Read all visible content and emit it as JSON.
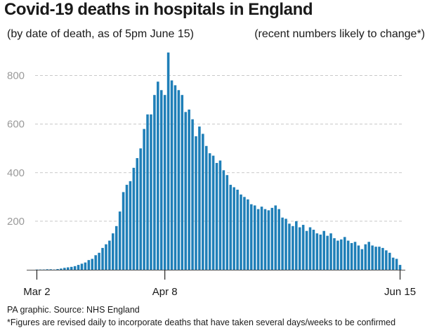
{
  "title": "Covid-19 deaths in hospitals in England",
  "subtitle_left": "(by date of death, as of 5pm June 15)",
  "subtitle_right": "(recent numbers likely to change*)",
  "footer": {
    "source": "PA graphic. Source: NHS England",
    "note": "*Figures are revised daily to incorporate deaths that have taken several days/weeks to be confirmed"
  },
  "colors": {
    "bar": "#1f7fb8",
    "grid": "#c8c8c8",
    "axis": "#555555",
    "tick_text": "#9a9a9a"
  },
  "chart_data": {
    "type": "bar",
    "title": "Covid-19 deaths in hospitals in England",
    "xlabel": "",
    "ylabel": "",
    "ylim": [
      0,
      900
    ],
    "yticks": [
      200,
      400,
      600,
      800
    ],
    "grid": true,
    "x_tick_labels": [
      {
        "index": 0,
        "label": "Mar 2"
      },
      {
        "index": 37,
        "label": "Apr 8"
      },
      {
        "index": 105,
        "label": "Jun 15"
      }
    ],
    "values": [
      1,
      1,
      1,
      2,
      2,
      1,
      3,
      5,
      8,
      10,
      12,
      15,
      20,
      25,
      30,
      40,
      45,
      60,
      70,
      90,
      105,
      120,
      150,
      180,
      240,
      320,
      350,
      365,
      420,
      460,
      500,
      580,
      640,
      640,
      720,
      775,
      740,
      720,
      895,
      780,
      760,
      740,
      720,
      650,
      660,
      620,
      550,
      590,
      560,
      510,
      480,
      470,
      440,
      450,
      410,
      390,
      350,
      340,
      330,
      310,
      300,
      290,
      270,
      265,
      250,
      260,
      250,
      245,
      255,
      265,
      250,
      215,
      210,
      190,
      180,
      200,
      175,
      185,
      160,
      175,
      165,
      150,
      145,
      160,
      140,
      150,
      130,
      120,
      125,
      135,
      120,
      110,
      115,
      100,
      85,
      105,
      115,
      100,
      95,
      95,
      90,
      80,
      70,
      50,
      45,
      20
    ]
  }
}
